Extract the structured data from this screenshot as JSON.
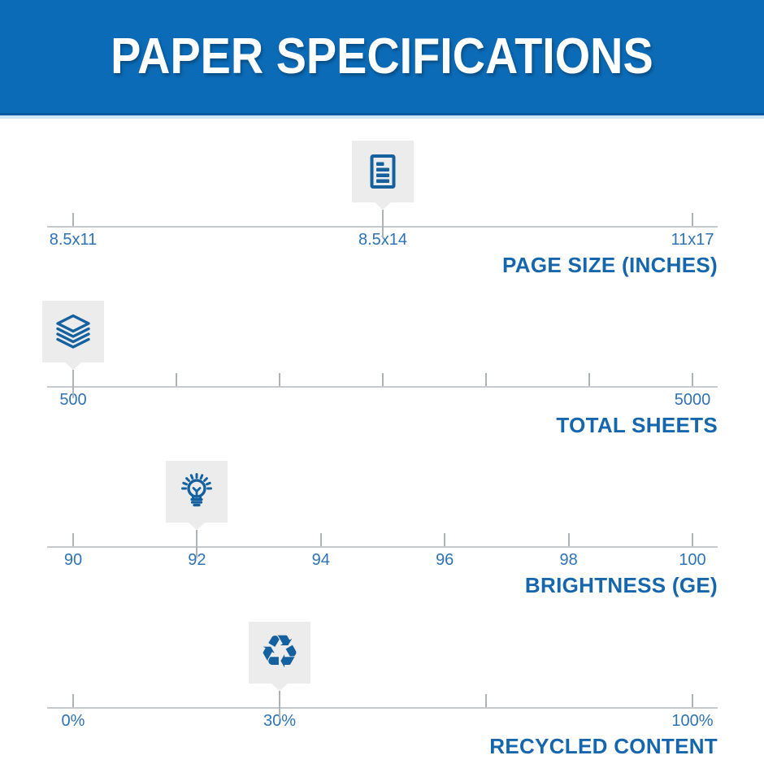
{
  "header": {
    "title": "PAPER SPECIFICATIONS"
  },
  "colors": {
    "banner_blue": "#0b6bb7",
    "banner_edge": "#0859a2",
    "icon_blue": "#15619f",
    "title_blue": "#1566ac",
    "tick_label_blue": "#2f73b4",
    "scale_line_gray": "#c6cacd",
    "tick_gray": "#aeb3b7",
    "icon_bg_gray": "#ececec",
    "title_text": "#ffffff"
  },
  "icons": {
    "recycle_glyph": "♻"
  },
  "scales": [
    {
      "id": "page-size",
      "title": "PAGE SIZE (INCHES)",
      "icon": "document-icon",
      "marker_value": "8.5x14",
      "marker_t": 0.5,
      "ticks": [
        {
          "t": 0,
          "label": "8.5x11"
        },
        {
          "t": 0.5,
          "label": "8.5x14"
        },
        {
          "t": 1,
          "label": "11x17"
        }
      ]
    },
    {
      "id": "total-sheets",
      "title": "TOTAL SHEETS",
      "icon": "paper-stack-icon",
      "marker_value": "500",
      "marker_t": 0,
      "ticks": [
        {
          "t": 0,
          "label": "500"
        },
        {
          "t": 0.1667,
          "label": ""
        },
        {
          "t": 0.3333,
          "label": ""
        },
        {
          "t": 0.5,
          "label": ""
        },
        {
          "t": 0.6667,
          "label": ""
        },
        {
          "t": 0.8333,
          "label": ""
        },
        {
          "t": 1,
          "label": "5000"
        }
      ]
    },
    {
      "id": "brightness",
      "title": "BRIGHTNESS (GE)",
      "icon": "lightbulb-icon",
      "marker_value": "92",
      "marker_t": 0.2,
      "ticks": [
        {
          "t": 0,
          "label": "90"
        },
        {
          "t": 0.2,
          "label": "92"
        },
        {
          "t": 0.4,
          "label": "94"
        },
        {
          "t": 0.6,
          "label": "96"
        },
        {
          "t": 0.8,
          "label": "98"
        },
        {
          "t": 1,
          "label": "100"
        }
      ]
    },
    {
      "id": "recycled-content",
      "title": "RECYCLED CONTENT",
      "icon": "recycle-icon",
      "marker_value": "30%",
      "marker_t": 0.3333,
      "ticks": [
        {
          "t": 0,
          "label": "0%"
        },
        {
          "t": 0.3333,
          "label": "30%"
        },
        {
          "t": 0.6667,
          "label": ""
        },
        {
          "t": 1,
          "label": "100%"
        }
      ]
    }
  ]
}
